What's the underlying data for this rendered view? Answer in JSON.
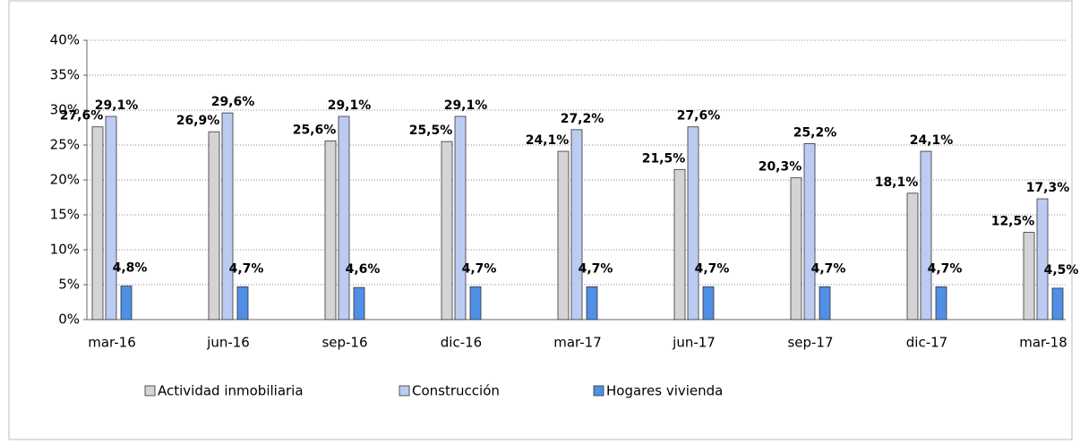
{
  "chart_data": {
    "type": "bar",
    "categories": [
      "mar-16",
      "jun-16",
      "sep-16",
      "dic-16",
      "mar-17",
      "jun-17",
      "sep-17",
      "dic-17",
      "mar-18"
    ],
    "series": [
      {
        "name": "Actividad inmobiliaria",
        "color": "#d4d4d4",
        "values": [
          27.6,
          26.9,
          25.6,
          25.5,
          24.1,
          21.5,
          20.3,
          18.1,
          12.5
        ],
        "value_labels": [
          "27,6%",
          "26,9%",
          "25,6%",
          "25,5%",
          "24,1%",
          "21,5%",
          "20,3%",
          "18,1%",
          "12,5%"
        ]
      },
      {
        "name": "Construcción",
        "color": "#bccbf2",
        "values": [
          29.1,
          29.6,
          29.1,
          29.1,
          27.2,
          27.6,
          25.2,
          24.1,
          17.3
        ],
        "value_labels": [
          "29,1%",
          "29,6%",
          "29,1%",
          "29,1%",
          "27,2%",
          "27,6%",
          "25,2%",
          "24,1%",
          "17,3%"
        ]
      },
      {
        "name": "Hogares vivienda",
        "color": "#4f8fe6",
        "values": [
          4.8,
          4.7,
          4.6,
          4.7,
          4.7,
          4.7,
          4.7,
          4.7,
          4.5
        ],
        "value_labels": [
          "4,8%",
          "4,7%",
          "4,6%",
          "4,7%",
          "4,7%",
          "4,7%",
          "4,7%",
          "4,7%",
          "4,5%"
        ]
      }
    ],
    "ylim": [
      0,
      40
    ],
    "yticks": [
      {
        "value": 0,
        "label": "0%"
      },
      {
        "value": 5,
        "label": "5%"
      },
      {
        "value": 10,
        "label": "10%"
      },
      {
        "value": 15,
        "label": "15%"
      },
      {
        "value": 20,
        "label": "20%"
      },
      {
        "value": 25,
        "label": "25%"
      },
      {
        "value": 30,
        "label": "30%"
      },
      {
        "value": 35,
        "label": "35%"
      },
      {
        "value": 40,
        "label": "40%"
      }
    ],
    "grid": true,
    "legend": "bottom"
  }
}
